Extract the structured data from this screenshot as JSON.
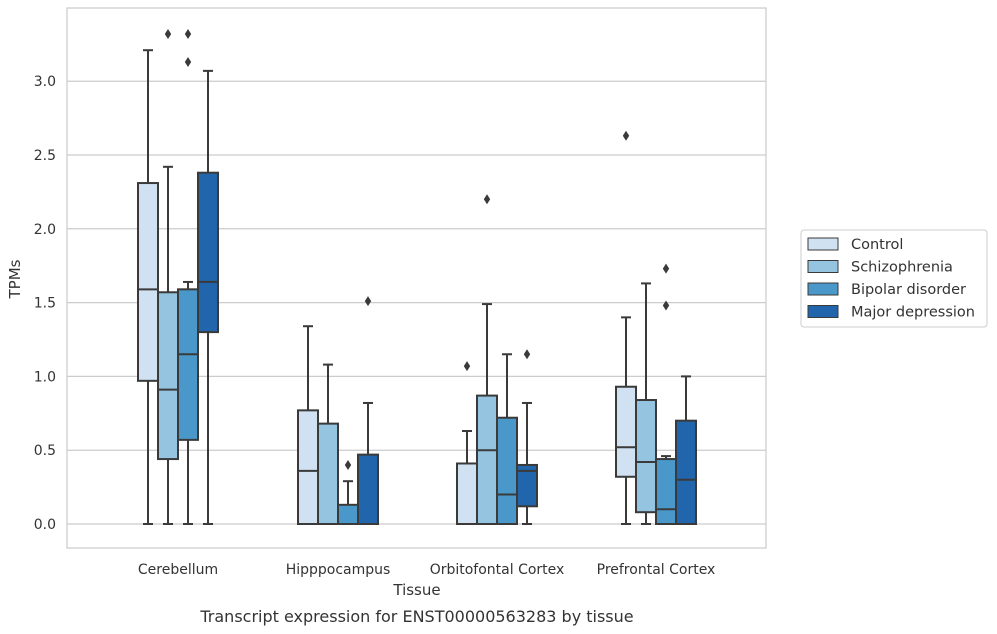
{
  "chart_data": {
    "type": "box",
    "caption": "Transcript expression for ENST00000563283 by tissue",
    "xlabel": "Tissue",
    "ylabel": "TPMs",
    "ylim": [
      -0.16,
      3.5
    ],
    "yticks": [
      "0.0",
      "0.5",
      "1.0",
      "1.5",
      "2.0",
      "2.5",
      "3.0"
    ],
    "grid": true,
    "legend_position": "right",
    "categories": [
      "Cerebellum",
      "Hipppocampus",
      "Orbitofontal Cortex",
      "Prefrontal Cortex"
    ],
    "series": [
      {
        "name": "Control",
        "color": "#d0e1f2",
        "boxes": [
          {
            "min": 0.0,
            "q1": 0.97,
            "median": 1.59,
            "q3": 2.31,
            "max": 3.21,
            "outliers": []
          },
          {
            "min": 0.0,
            "q1": 0.0,
            "median": 0.36,
            "q3": 0.77,
            "max": 1.34,
            "outliers": []
          },
          {
            "min": 0.0,
            "q1": 0.0,
            "median": 0.0,
            "q3": 0.41,
            "max": 0.63,
            "outliers": [
              1.07
            ]
          },
          {
            "min": 0.0,
            "q1": 0.32,
            "median": 0.52,
            "q3": 0.93,
            "max": 1.4,
            "outliers": [
              2.63
            ]
          }
        ]
      },
      {
        "name": "Schizophrenia",
        "color": "#94c4df",
        "boxes": [
          {
            "min": 0.0,
            "q1": 0.44,
            "median": 0.91,
            "q3": 1.57,
            "max": 2.42,
            "outliers": [
              3.32
            ]
          },
          {
            "min": 0.0,
            "q1": 0.0,
            "median": 0.0,
            "q3": 0.68,
            "max": 1.08,
            "outliers": []
          },
          {
            "min": 0.0,
            "q1": 0.0,
            "median": 0.5,
            "q3": 0.87,
            "max": 1.49,
            "outliers": [
              2.2
            ]
          },
          {
            "min": 0.0,
            "q1": 0.08,
            "median": 0.42,
            "q3": 0.84,
            "max": 1.63,
            "outliers": []
          }
        ]
      },
      {
        "name": "Bipolar disorder",
        "color": "#4a98c9",
        "boxes": [
          {
            "min": 0.0,
            "q1": 0.57,
            "median": 1.15,
            "q3": 1.59,
            "max": 1.64,
            "outliers": [
              3.32,
              3.13
            ]
          },
          {
            "min": 0.0,
            "q1": 0.0,
            "median": 0.0,
            "q3": 0.13,
            "max": 0.29,
            "outliers": [
              0.4
            ]
          },
          {
            "min": 0.0,
            "q1": 0.0,
            "median": 0.2,
            "q3": 0.72,
            "max": 1.15,
            "outliers": []
          },
          {
            "min": 0.0,
            "q1": 0.0,
            "median": 0.1,
            "q3": 0.44,
            "max": 0.46,
            "outliers": [
              1.73,
              1.48
            ]
          }
        ]
      },
      {
        "name": "Major depression",
        "color": "#2166ac",
        "boxes": [
          {
            "min": 0.0,
            "q1": 1.3,
            "median": 1.64,
            "q3": 2.38,
            "max": 3.07,
            "outliers": []
          },
          {
            "min": 0.0,
            "q1": 0.0,
            "median": 0.0,
            "q3": 0.47,
            "max": 0.82,
            "outliers": [
              1.51
            ]
          },
          {
            "min": 0.0,
            "q1": 0.12,
            "median": 0.36,
            "q3": 0.4,
            "max": 0.82,
            "outliers": [
              1.15
            ]
          },
          {
            "min": 0.0,
            "q1": 0.0,
            "median": 0.3,
            "q3": 0.7,
            "max": 1.0,
            "outliers": []
          }
        ]
      }
    ]
  }
}
